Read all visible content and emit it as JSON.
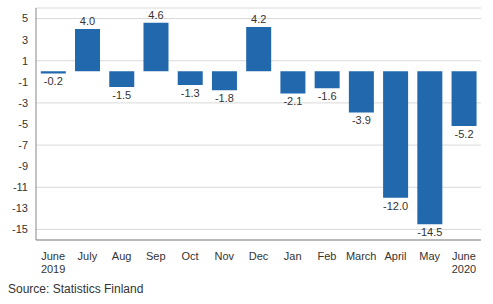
{
  "chart_data": {
    "type": "bar",
    "source": "Source: Statistics Finland",
    "categories": [
      "June\n2019",
      "July",
      "Aug",
      "Sep",
      "Oct",
      "Nov",
      "Dec",
      "Jan",
      "Feb",
      "March",
      "April",
      "May",
      "June\n2020"
    ],
    "values": [
      -0.2,
      4.0,
      -1.5,
      4.6,
      -1.3,
      -1.8,
      4.2,
      -2.1,
      -1.6,
      -3.9,
      -12.0,
      -14.5,
      -5.2
    ],
    "value_labels": [
      "-0.2",
      "4.0",
      "-1.5",
      "4.6",
      "-1.3",
      "-1.8",
      "4.2",
      "-2.1",
      "-1.6",
      "-3.9",
      "-12.0",
      "-14.5",
      "-5.2"
    ],
    "color": "#2168ad",
    "ylim": [
      -16,
      6
    ],
    "yticks": [
      5,
      3,
      1,
      -1,
      -3,
      -5,
      -7,
      -9,
      -11,
      -13,
      -15
    ],
    "grid": true,
    "data_labels": true
  }
}
